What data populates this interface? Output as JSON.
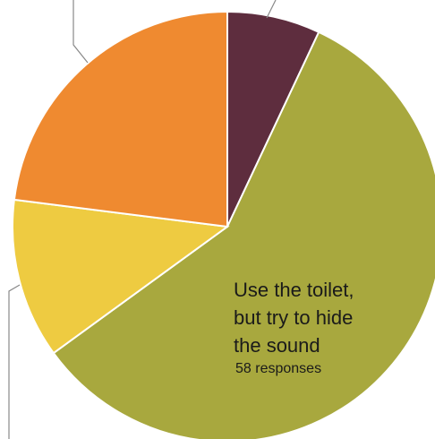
{
  "chart_data": {
    "type": "pie",
    "start_angle_deg": 0,
    "direction": "clockwise",
    "slices": [
      {
        "label": "",
        "value": 7,
        "color": "#5e2d3e"
      },
      {
        "label": "Use the toilet, but try to hide the sound",
        "value": 58,
        "color": "#a8a83e"
      },
      {
        "label": "",
        "value": 12,
        "color": "#eecb41"
      },
      {
        "label": "",
        "value": 23,
        "color": "#ef8a30"
      }
    ],
    "annotation": {
      "lines": [
        "Use the toilet,",
        "but try to hide",
        "the sound"
      ],
      "count_text": "58 responses"
    }
  }
}
